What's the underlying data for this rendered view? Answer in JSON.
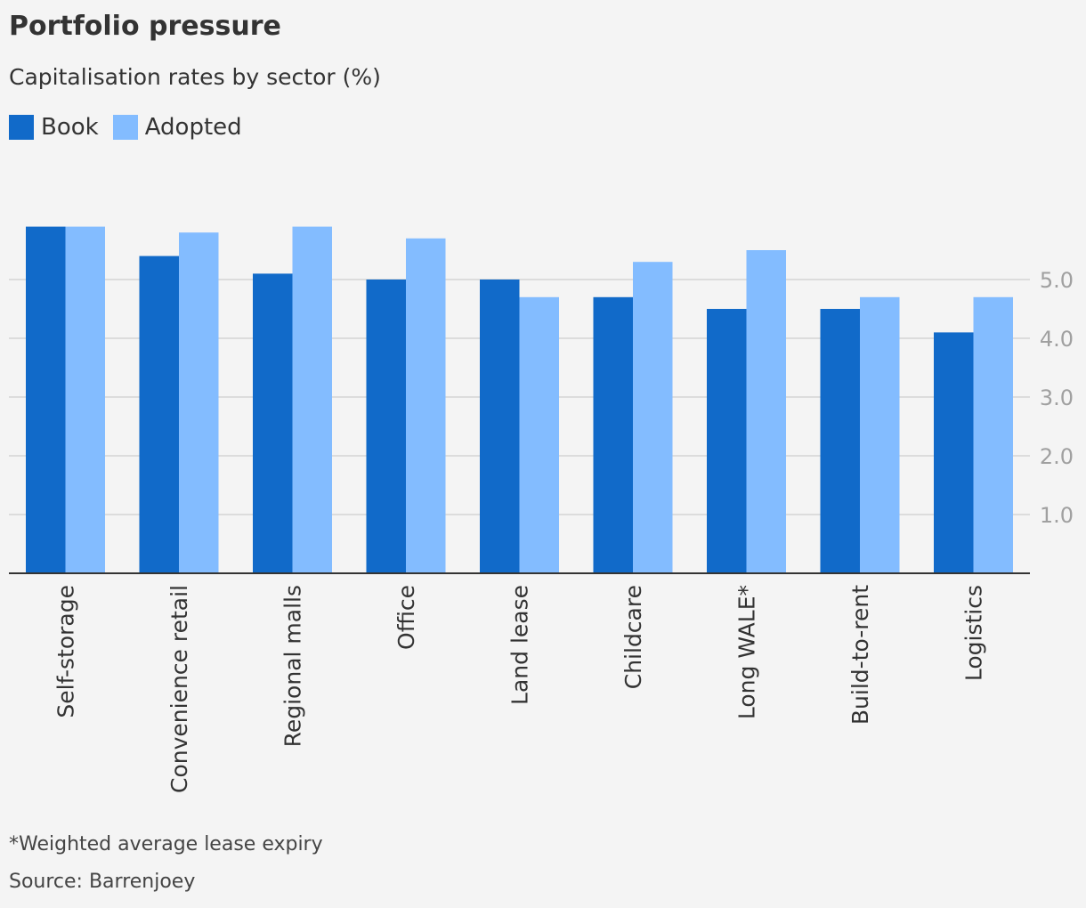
{
  "title": "Portfolio pressure",
  "subtitle": "Capitalisation rates by sector (%)",
  "footnote": "*Weighted average lease expiry",
  "source": "Source: Barrenjoey",
  "colors": {
    "book": "#116ac9",
    "adopted": "#83bcff",
    "grid": "#dcdcdc",
    "axis": "#333333",
    "tick": "#a0a0a0",
    "background": "#f4f4f4"
  },
  "chart_data": {
    "type": "bar",
    "categories": [
      "Self-storage",
      "Convenience retail",
      "Regional malls",
      "Office",
      "Land lease",
      "Childcare",
      "Long WALE*",
      "Build-to-rent",
      "Logistics"
    ],
    "series": [
      {
        "name": "Book",
        "values": [
          5.9,
          5.4,
          5.1,
          5.0,
          5.0,
          4.7,
          4.5,
          4.5,
          4.1
        ]
      },
      {
        "name": "Adopted",
        "values": [
          5.9,
          5.8,
          5.9,
          5.7,
          4.7,
          5.3,
          5.5,
          4.7,
          4.7
        ]
      }
    ],
    "yticks": [
      1.0,
      2.0,
      3.0,
      4.0,
      5.0
    ],
    "ytick_labels": [
      "1.0",
      "2.0",
      "3.0",
      "4.0",
      "5.0"
    ],
    "ylim": [
      0,
      5.9
    ],
    "grid": true,
    "legend_position": "top-left"
  }
}
